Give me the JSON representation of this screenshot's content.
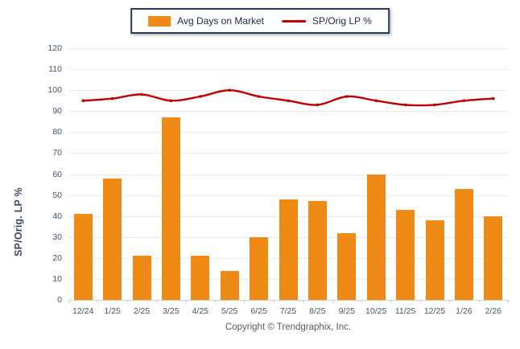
{
  "chart_data": {
    "type": "bar+line combo",
    "categories": [
      "12/24",
      "1/25",
      "2/25",
      "3/25",
      "4/25",
      "5/25",
      "6/25",
      "7/25",
      "8/25",
      "9/25",
      "10/25",
      "11/25",
      "12/25",
      "1/26",
      "2/26"
    ],
    "series": [
      {
        "name": "Avg Days on Market",
        "type": "bar",
        "values": [
          41,
          58,
          21,
          87,
          21,
          14,
          30,
          48,
          47,
          32,
          60,
          43,
          38,
          53,
          40
        ]
      },
      {
        "name": "SP/Orig LP %",
        "type": "line",
        "values": [
          95,
          96,
          98,
          95,
          97,
          100,
          97,
          95,
          93,
          97,
          95,
          93,
          93,
          95,
          96
        ]
      }
    ],
    "title": "",
    "xlabel": "",
    "ylabel": "SP/Orig. LP %",
    "ylim": [
      0,
      120
    ],
    "ytick_step": 10,
    "grid": "horizontal",
    "legend_position": "top-center"
  },
  "footer": {
    "copyright": "Copyright © Trendgraphix, Inc."
  },
  "colors": {
    "bar": "#F08A16",
    "line": "#C00000",
    "axis_text": "#44546A",
    "ylabel_text": "#3B4A63",
    "legend_text": "#152A4E",
    "legend_border": "#26395A",
    "grid": "#E9E9E9",
    "copyright_text": "#595959"
  }
}
